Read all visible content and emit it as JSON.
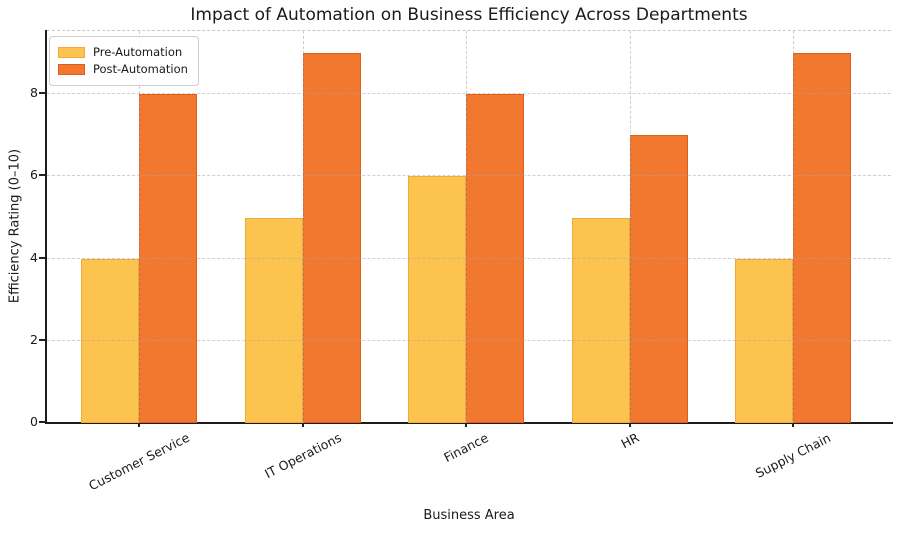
{
  "chart_data": {
    "type": "bar",
    "title": "Impact of Automation on Business Efficiency Across Departments",
    "xlabel": "Business Area",
    "ylabel": "Efficiency Rating (0–10)",
    "categories": [
      "Customer Service",
      "IT Operations",
      "Finance",
      "HR",
      "Supply Chain"
    ],
    "series": [
      {
        "name": "Pre-Automation",
        "color": "#FCC44E",
        "edge_color": "#F2A93B",
        "values": [
          4,
          5,
          6,
          5,
          4
        ]
      },
      {
        "name": "Post-Automation",
        "color": "#F2772F",
        "edge_color": "#DE5F1C",
        "values": [
          8,
          9,
          8,
          7,
          9
        ]
      }
    ],
    "yticks": [
      0,
      2,
      4,
      6,
      8
    ],
    "ylim": [
      0,
      9.54
    ],
    "grid": true,
    "grid_style": "dashed",
    "grid_color": "#c9c9c9",
    "legend_position": "upper left",
    "x_tick_rotation_deg": 27,
    "background_color": "#ffffff"
  }
}
